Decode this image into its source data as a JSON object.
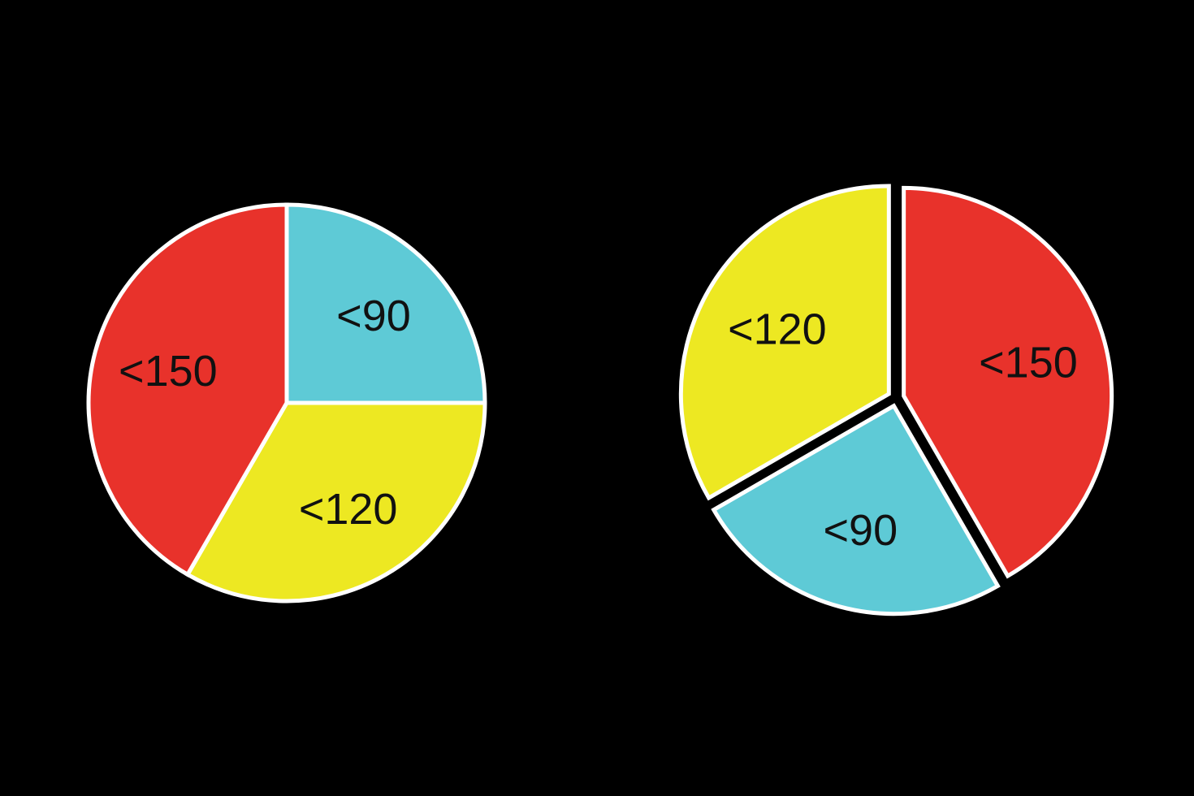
{
  "background": "#000000",
  "outline_color": "#ffffff",
  "label_color": "#111111",
  "chart_data": [
    {
      "type": "pie",
      "exploded": false,
      "start_angle_deg": 0,
      "slices": [
        {
          "label": "<90",
          "value": 90,
          "color": "#5ECAD6"
        },
        {
          "label": "<120",
          "value": 120,
          "color": "#EDE822"
        },
        {
          "label": "<150",
          "value": 150,
          "color": "#E8322B"
        }
      ]
    },
    {
      "type": "pie",
      "exploded": true,
      "start_angle_deg": 0,
      "slices": [
        {
          "label": "<150",
          "value": 150,
          "color": "#E8322B"
        },
        {
          "label": "<90",
          "value": 90,
          "color": "#5ECAD6"
        },
        {
          "label": "<120",
          "value": 120,
          "color": "#EDE822"
        }
      ]
    }
  ]
}
